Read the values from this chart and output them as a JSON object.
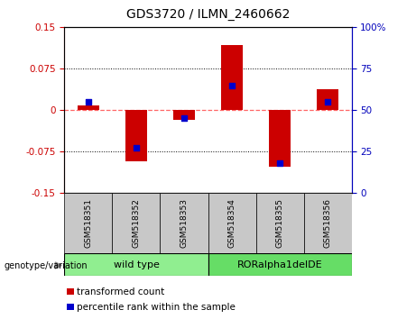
{
  "title": "GDS3720 / ILMN_2460662",
  "samples": [
    "GSM518351",
    "GSM518352",
    "GSM518353",
    "GSM518354",
    "GSM518355",
    "GSM518356"
  ],
  "transformed_counts": [
    0.008,
    -0.093,
    -0.018,
    0.118,
    -0.102,
    0.038
  ],
  "percentile_ranks": [
    55,
    27,
    45,
    65,
    18,
    55
  ],
  "groups": [
    {
      "label": "wild type",
      "indices": [
        0,
        1,
        2
      ],
      "color": "#90EE90"
    },
    {
      "label": "RORalpha1delDE",
      "indices": [
        3,
        4,
        5
      ],
      "color": "#66DD66"
    }
  ],
  "ylim_left": [
    -0.15,
    0.15
  ],
  "ylim_right": [
    0,
    100
  ],
  "yticks_left": [
    -0.15,
    -0.075,
    0,
    0.075,
    0.15
  ],
  "yticks_right": [
    0,
    25,
    50,
    75,
    100
  ],
  "bar_color": "#CC0000",
  "dot_color": "#0000CC",
  "zero_line_color": "#FF6666",
  "legend_red_label": "transformed count",
  "legend_blue_label": "percentile rank within the sample",
  "genotype_label": "genotype/variation",
  "sample_box_color": "#C8C8C8",
  "left_axis_color": "#CC0000",
  "right_axis_color": "#0000BB"
}
